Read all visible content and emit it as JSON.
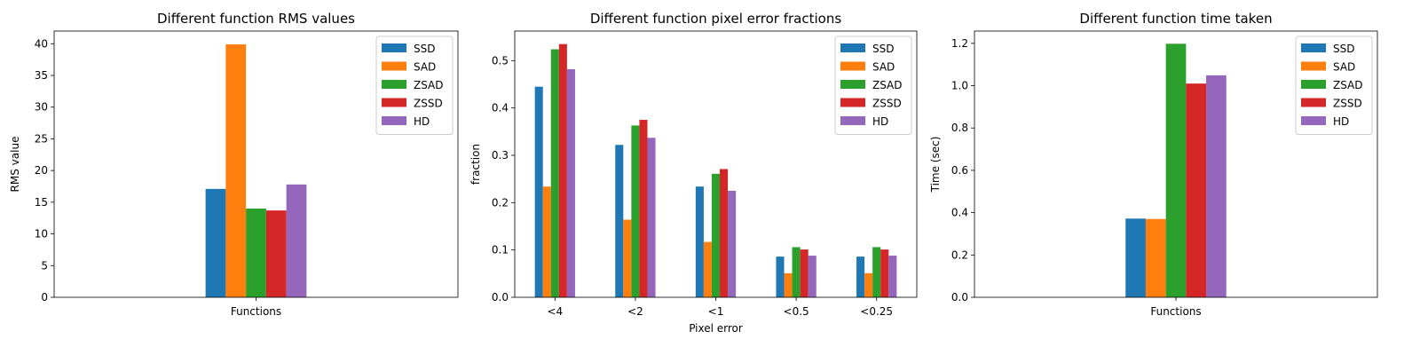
{
  "colors": {
    "SSD": "#1f77b4",
    "SAD": "#ff7f0e",
    "ZSAD": "#2ca02c",
    "ZSSD": "#d62728",
    "HD": "#9467bd"
  },
  "chart_data": [
    {
      "type": "bar",
      "title": "Different function RMS values",
      "xlabel": "",
      "ylabel": "RMS value",
      "categories": [
        "Functions"
      ],
      "series": [
        {
          "name": "SSD",
          "values": [
            17.1
          ]
        },
        {
          "name": "SAD",
          "values": [
            39.9
          ]
        },
        {
          "name": "ZSAD",
          "values": [
            14.0
          ]
        },
        {
          "name": "ZSSD",
          "values": [
            13.7
          ]
        },
        {
          "name": "HD",
          "values": [
            17.8
          ]
        }
      ],
      "ylim": [
        0,
        42
      ],
      "yticks": [
        0,
        5,
        10,
        15,
        20,
        25,
        30,
        35,
        40
      ],
      "legend": "top-right",
      "grid": false
    },
    {
      "type": "bar",
      "title": "Different function pixel error fractions",
      "xlabel": "Pixel error",
      "ylabel": "fraction",
      "categories": [
        "<4",
        "<2",
        "<1",
        "<0.5",
        "<0.25"
      ],
      "series": [
        {
          "name": "SSD",
          "values": [
            0.445,
            0.322,
            0.234,
            0.086,
            0.086
          ]
        },
        {
          "name": "SAD",
          "values": [
            0.234,
            0.164,
            0.117,
            0.051,
            0.051
          ]
        },
        {
          "name": "ZSAD",
          "values": [
            0.524,
            0.363,
            0.261,
            0.106,
            0.106
          ]
        },
        {
          "name": "ZSSD",
          "values": [
            0.535,
            0.375,
            0.271,
            0.101,
            0.101
          ]
        },
        {
          "name": "HD",
          "values": [
            0.482,
            0.337,
            0.225,
            0.088,
            0.088
          ]
        }
      ],
      "ylim": [
        0,
        0.5625
      ],
      "yticks": [
        0.0,
        0.1,
        0.2,
        0.3,
        0.4,
        0.5
      ],
      "legend": "top-right",
      "grid": false
    },
    {
      "type": "bar",
      "title": "Different function time taken",
      "xlabel": "",
      "ylabel": "Time (sec)",
      "categories": [
        "Functions"
      ],
      "series": [
        {
          "name": "SSD",
          "values": [
            0.372
          ]
        },
        {
          "name": "SAD",
          "values": [
            0.37
          ]
        },
        {
          "name": "ZSAD",
          "values": [
            1.198
          ]
        },
        {
          "name": "ZSSD",
          "values": [
            1.01
          ]
        },
        {
          "name": "HD",
          "values": [
            1.049
          ]
        }
      ],
      "ylim": [
        0,
        1.258
      ],
      "yticks": [
        0.0,
        0.2,
        0.4,
        0.6,
        0.8,
        1.0,
        1.2
      ],
      "ytick_labels": [
        "0.0",
        "0.2",
        "0.4",
        "0.6",
        "0.8",
        "1.0",
        "1.2"
      ],
      "legend": "top-right",
      "grid": false
    }
  ]
}
